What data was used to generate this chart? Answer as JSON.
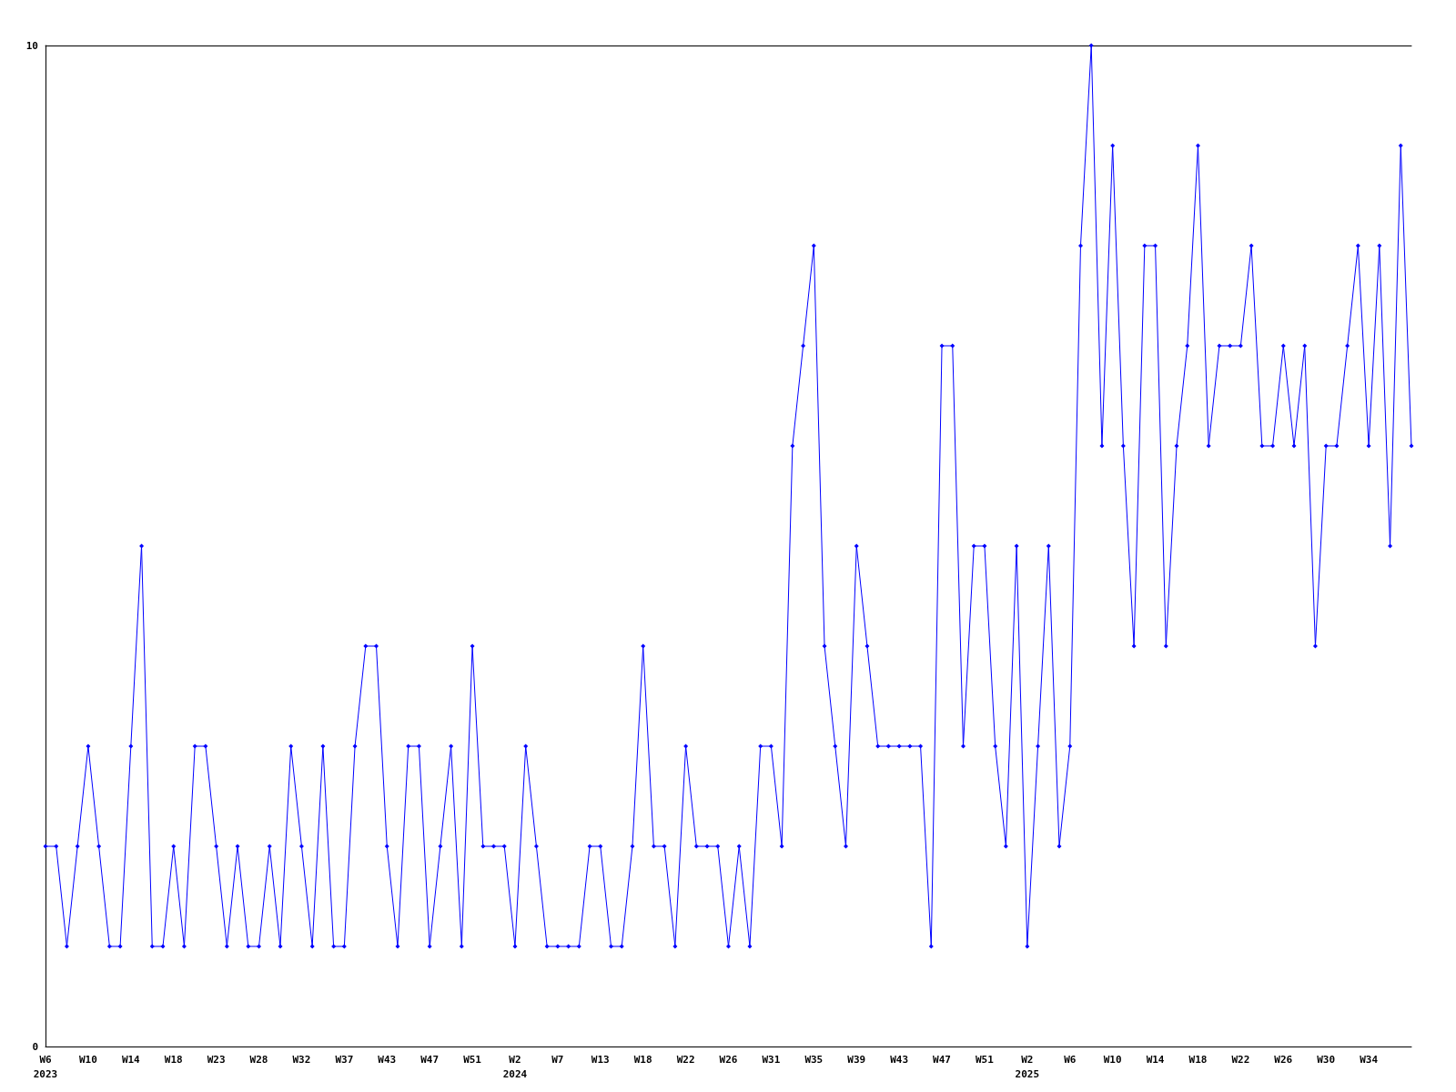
{
  "chart_data": {
    "type": "line",
    "categories": [
      "W6\n2023",
      null,
      null,
      null,
      "W10",
      null,
      null,
      null,
      "W14",
      null,
      null,
      null,
      "W18",
      null,
      null,
      null,
      "W23",
      null,
      null,
      null,
      "W28",
      null,
      null,
      null,
      "W32",
      null,
      null,
      null,
      "W37",
      null,
      null,
      null,
      "W43",
      null,
      null,
      null,
      "W47",
      null,
      null,
      null,
      "W51",
      null,
      null,
      null,
      "W2\n2024",
      null,
      null,
      null,
      "W7",
      null,
      null,
      null,
      "W13",
      null,
      null,
      null,
      "W18",
      null,
      null,
      null,
      "W22",
      null,
      null,
      null,
      "W26",
      null,
      null,
      null,
      "W31",
      null,
      null,
      null,
      "W35",
      null,
      null,
      null,
      "W39",
      null,
      null,
      null,
      "W43",
      null,
      null,
      null,
      "W47",
      null,
      null,
      null,
      "W51",
      null,
      null,
      null,
      "W2\n2025",
      null,
      null,
      null,
      "W6",
      null,
      null,
      null,
      "W10",
      null,
      null,
      null,
      "W14",
      null,
      null,
      null,
      "W18",
      null,
      null,
      null,
      "W22",
      null,
      null,
      null,
      "W26",
      null,
      null,
      null,
      "W30",
      null,
      null,
      null,
      "W34",
      null,
      null,
      null,
      null
    ],
    "series": [
      {
        "color": "#0000ff",
        "values": [
          2,
          2,
          1,
          2,
          3,
          2,
          1,
          1,
          3,
          5,
          1,
          1,
          2,
          1,
          3,
          3,
          2,
          1,
          2,
          1,
          1,
          2,
          1,
          3,
          2,
          1,
          3,
          1,
          1,
          3,
          4,
          4,
          2,
          1,
          3,
          3,
          1,
          2,
          3,
          1,
          4,
          2,
          2,
          2,
          1,
          3,
          2,
          1,
          1,
          1,
          1,
          2,
          2,
          1,
          1,
          2,
          4,
          2,
          2,
          1,
          3,
          2,
          2,
          2,
          1,
          2,
          1,
          3,
          3,
          2,
          6,
          7,
          8,
          4,
          3,
          2,
          5,
          4,
          3,
          3,
          3,
          3,
          3,
          1,
          7,
          7,
          3,
          5,
          5,
          3,
          2,
          5,
          1,
          3,
          5,
          2,
          3,
          8,
          10,
          6,
          9,
          6,
          4,
          8,
          8,
          4,
          6,
          7,
          9,
          6,
          7,
          7,
          7,
          8,
          6,
          6,
          7,
          6,
          7,
          4,
          6,
          6,
          7,
          8,
          6,
          8,
          5,
          9,
          6
        ]
      }
    ],
    "ylim": [
      0,
      10
    ],
    "yticks": [
      0,
      10
    ],
    "grid": false,
    "marker": "diamond",
    "line_style": "solid"
  }
}
